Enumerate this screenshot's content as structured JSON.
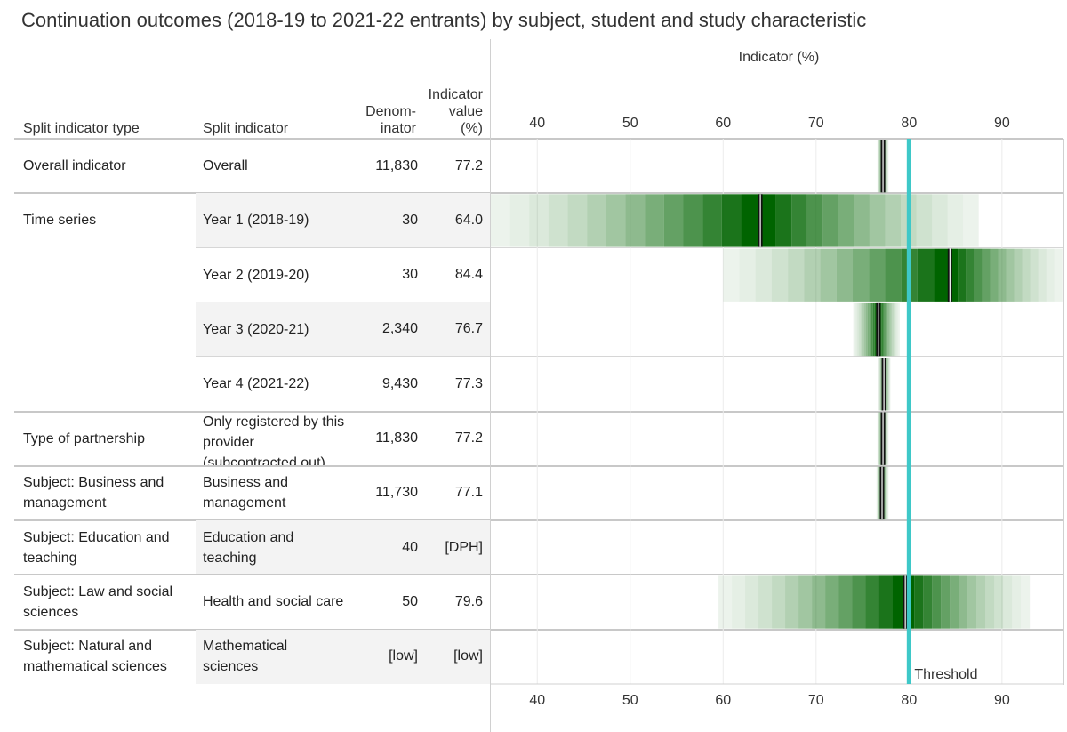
{
  "title": "Continuation outcomes (2018-19 to 2021-22 entrants) by subject, student and study characteristic",
  "columns": {
    "type_header": "Split indicator type",
    "split_header": "Split indicator",
    "denom_header_1": "Denom-",
    "denom_header_2": "inator",
    "value_header_1": "Indicator",
    "value_header_2": "value",
    "value_header_3": "(%)"
  },
  "chart_data": {
    "type": "table",
    "xlabel": "Indicator (%)",
    "xlim": [
      35,
      97
    ],
    "x_ticks": [
      40,
      50,
      60,
      70,
      80,
      90
    ],
    "threshold": 80,
    "threshold_label": "Threshold",
    "colors": {
      "bar": "#006400",
      "threshold": "#3ec8c8",
      "median": "#ffffff"
    },
    "rows": [
      {
        "type": "Overall indicator",
        "split": "Overall",
        "denominator": "11,830",
        "value_text": "77.2",
        "value": 77.2,
        "low": 76.6,
        "high": 77.8,
        "shade": false,
        "group_start": true
      },
      {
        "type": "Time series",
        "split": "Year 1 (2018-19)",
        "denominator": "30",
        "value_text": "64.0",
        "value": 64.0,
        "low": 35,
        "high": 87.5,
        "shade": true,
        "group_start": true
      },
      {
        "type": "",
        "split": "Year 2 (2019-20)",
        "denominator": "30",
        "value_text": "84.4",
        "value": 84.4,
        "low": 60,
        "high": 96.5,
        "shade": false,
        "group_start": false
      },
      {
        "type": "",
        "split": "Year 3 (2020-21)",
        "denominator": "2,340",
        "value_text": "76.7",
        "value": 76.7,
        "low": 74,
        "high": 79,
        "shade": true,
        "group_start": false
      },
      {
        "type": "",
        "split": "Year 4 (2021-22)",
        "denominator": "9,430",
        "value_text": "77.3",
        "value": 77.3,
        "low": 76.7,
        "high": 78,
        "shade": false,
        "group_start": false
      },
      {
        "type": "Type of partnership",
        "split": "Only registered by this provider (subcontracted out)",
        "denominator": "11,830",
        "value_text": "77.2",
        "value": 77.2,
        "low": 76.6,
        "high": 77.8,
        "shade": false,
        "group_start": true
      },
      {
        "type": "Subject: Business and management",
        "split": "Business and management",
        "denominator": "11,730",
        "value_text": "77.1",
        "value": 77.1,
        "low": 76.5,
        "high": 77.8,
        "shade": false,
        "group_start": true
      },
      {
        "type": "Subject: Education and teaching",
        "split": "Education and teaching",
        "denominator": "40",
        "value_text": "[DPH]",
        "value": null,
        "low": null,
        "high": null,
        "shade": true,
        "group_start": true
      },
      {
        "type": "Subject: Law and social sciences",
        "split": "Health and social care",
        "denominator": "50",
        "value_text": "79.6",
        "value": 79.6,
        "low": 59.5,
        "high": 93,
        "shade": false,
        "group_start": true
      },
      {
        "type": "Subject: Natural and mathematical sciences",
        "split": "Mathematical sciences",
        "denominator": "[low]",
        "value_text": "[low]",
        "value": null,
        "low": null,
        "high": null,
        "shade": true,
        "group_start": true
      }
    ]
  }
}
